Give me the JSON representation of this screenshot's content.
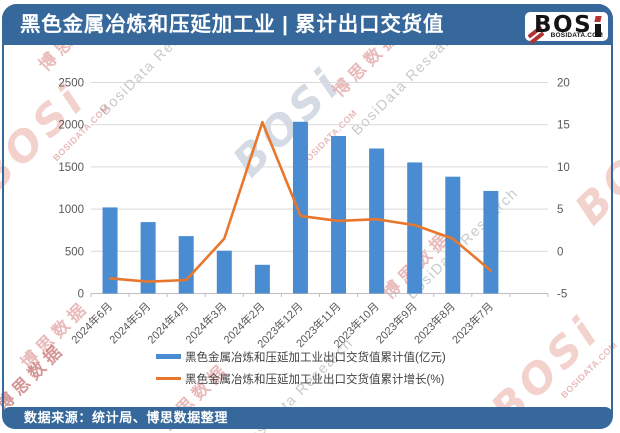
{
  "header": {
    "title": "黑色金属冶炼和压延加工业 | 累计出口交货值",
    "logo": {
      "brand": "BOSi",
      "site": "BOSIDATA.COM"
    }
  },
  "footer": {
    "source_label": "数据来源：统计局、博思数据整理"
  },
  "watermark": {
    "brand": "BOSi",
    "site": "BOSIDATA.COM",
    "cn": "博思数据",
    "en": "BosiData Research"
  },
  "colors": {
    "theme_blue": "#36689B",
    "bar_blue": "#4A8CD2",
    "line_orange": "#E8772E",
    "gridline": "#D9D9D9",
    "axis_line": "#BFBFBF",
    "axis_text": "#595959",
    "legend_text": "#404040"
  },
  "chart_data": {
    "type": "bar",
    "combo": "bar+line",
    "categories": [
      "2024年6月",
      "2024年5月",
      "2024年4月",
      "2024年3月",
      "2024年2月",
      "2023年12月",
      "2023年11月",
      "2023年10月",
      "2023年9月",
      "2023年8月",
      "2023年7月"
    ],
    "series": [
      {
        "name": "黑色金属冶炼和压延加工业出口交货值累计值(亿元)",
        "type": "bar",
        "axis": "left",
        "values": [
          1020,
          846,
          680,
          507,
          340,
          2035,
          1866,
          1718,
          1553,
          1384,
          1215
        ]
      },
      {
        "name": "黑色金属冶炼和压延加工业出口交货值累计增长(%)",
        "type": "line",
        "axis": "right",
        "values": [
          -3.2,
          -3.6,
          -3.4,
          1.5,
          15.3,
          4.2,
          3.6,
          3.8,
          3.1,
          1.5,
          -2.3
        ]
      }
    ],
    "left_axis": {
      "min": 0,
      "max": 2500,
      "step": 500
    },
    "right_axis": {
      "min": -5,
      "max": 20,
      "step": 5
    },
    "grid": true,
    "legend_position": "bottom",
    "title": "黑色金属冶炼和压延加工业 | 累计出口交货值"
  }
}
